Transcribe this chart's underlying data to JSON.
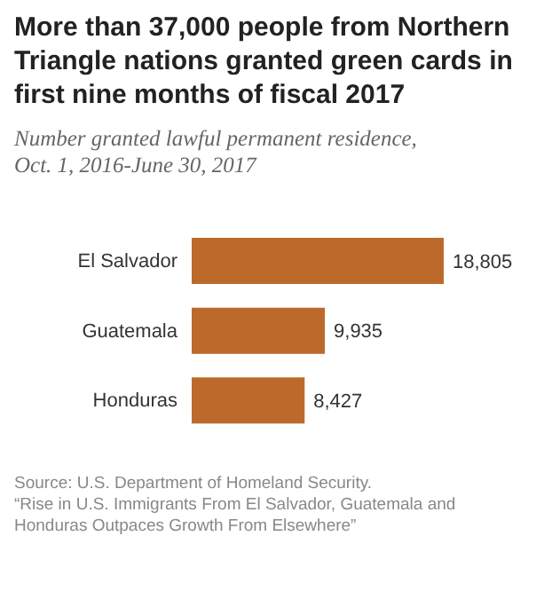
{
  "chart_data": {
    "type": "bar",
    "orientation": "horizontal",
    "title": "More than 37,000 people from Northern Triangle nations granted green cards in first nine months of fiscal 2017",
    "subtitle": "Number granted lawful permanent residence, Oct. 1, 2016-June 30, 2017",
    "categories": [
      "El Salvador",
      "Guatemala",
      "Honduras"
    ],
    "values": [
      18805,
      9935,
      8427
    ],
    "color": "#bc6a2b",
    "value_labels": [
      "18,805",
      "9,935",
      "8,427"
    ],
    "annotations": [
      "Source: U.S. Department of Homeland Security.",
      "“Rise in U.S. Immigrants From El Salvador, Guatemala and Honduras Outpaces Growth From Elsewhere”"
    ]
  }
}
